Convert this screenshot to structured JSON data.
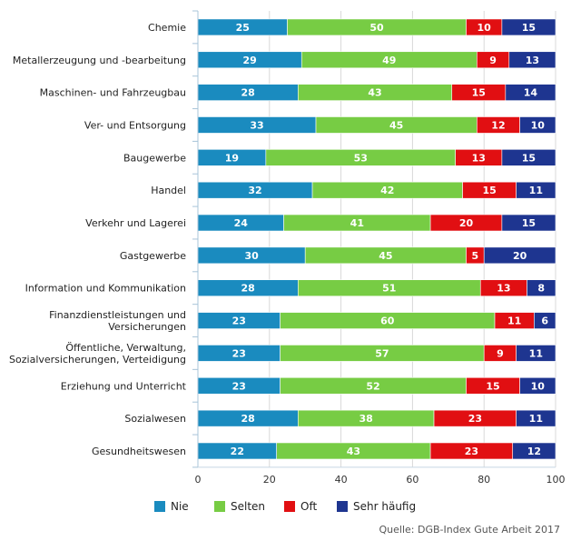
{
  "chart_data": {
    "type": "bar",
    "orientation": "horizontal",
    "stacked": true,
    "title": "",
    "xlabel": "",
    "ylabel": "",
    "xlim": [
      0,
      100
    ],
    "xticks": [
      0,
      20,
      40,
      60,
      80,
      100
    ],
    "grid": true,
    "legend_position": "bottom",
    "categories": [
      [
        "Chemie"
      ],
      [
        "Metallerzeugung und -bearbeitung"
      ],
      [
        "Maschinen- und Fahrzeugbau"
      ],
      [
        "Ver- und Entsorgung"
      ],
      [
        "Baugewerbe"
      ],
      [
        "Handel"
      ],
      [
        "Verkehr und Lagerei"
      ],
      [
        "Gastgewerbe"
      ],
      [
        "Information und Kommunikation"
      ],
      [
        "Finanzdienstleistungen und",
        "Versicherungen"
      ],
      [
        "Öffentliche, Verwaltung,",
        "Sozialversicherungen, Verteidigung"
      ],
      [
        "Erziehung und Unterricht"
      ],
      [
        "Sozialwesen"
      ],
      [
        "Gesundheitswesen"
      ]
    ],
    "series": [
      {
        "name": "Nie",
        "color": "#1a8bbf",
        "values": [
          25,
          29,
          28,
          33,
          19,
          32,
          24,
          30,
          28,
          23,
          23,
          23,
          28,
          22
        ]
      },
      {
        "name": "Selten",
        "color": "#77cc44",
        "values": [
          50,
          49,
          43,
          45,
          53,
          42,
          41,
          45,
          51,
          60,
          57,
          52,
          38,
          43
        ]
      },
      {
        "name": "Oft",
        "color": "#e10f12",
        "values": [
          10,
          9,
          15,
          12,
          13,
          15,
          20,
          5,
          13,
          11,
          9,
          15,
          23,
          23
        ]
      },
      {
        "name": "Sehr häufig",
        "color": "#1e3590",
        "values": [
          15,
          13,
          14,
          10,
          15,
          11,
          15,
          20,
          8,
          6,
          11,
          10,
          11,
          12
        ]
      }
    ],
    "source": "Quelle: DGB-Index Gute Arbeit 2017"
  }
}
